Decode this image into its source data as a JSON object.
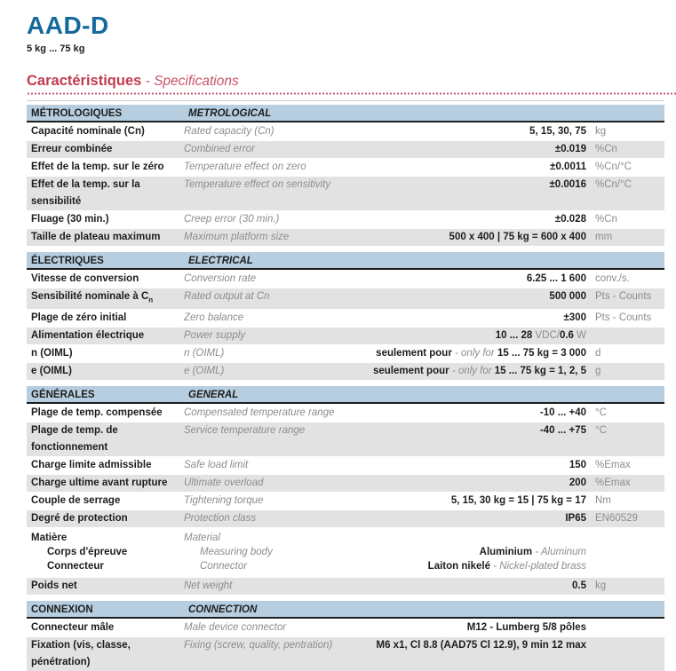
{
  "page": {
    "title": "AAD-D",
    "subtitle": "5 kg ... 75 kg",
    "heading_fr": "Caractéristiques",
    "heading_en": " - Specifications"
  },
  "colors": {
    "accent_blue": "#16699b",
    "accent_red": "#c23a4e",
    "section_band": "#b7cee1",
    "row_alt": "#e2e2e2",
    "text_dark": "#1d1d1b",
    "text_gray": "#8d8d8d"
  },
  "sections": [
    {
      "title_fr": "MÉTROLOGIQUES",
      "title_en": "METROLOGICAL",
      "rows": [
        {
          "fr": "Capacité nominale (Cn)",
          "en": "Rated capacity (Cn)",
          "value": [
            {
              "t": "5, 15, 30, 75",
              "s": "b"
            }
          ],
          "unit": "kg"
        },
        {
          "fr": "Erreur combinée",
          "en": "Combined error",
          "value": [
            {
              "t": "±0.019",
              "s": "b"
            }
          ],
          "unit": "%Cn"
        },
        {
          "fr": "Effet de la temp. sur le zéro",
          "en": "Temperature effect on zero",
          "value": [
            {
              "t": "±0.0011",
              "s": "b"
            }
          ],
          "unit": "%Cn/°C"
        },
        {
          "fr": "Effet de la temp. sur la sensibilité",
          "en": "Temperature effect on sensitivity",
          "value": [
            {
              "t": "±0.0016",
              "s": "b"
            }
          ],
          "unit": "%Cn/°C"
        },
        {
          "fr": "Fluage (30 min.)",
          "en": "Creep error (30 min.)",
          "value": [
            {
              "t": "±0.028",
              "s": "b"
            }
          ],
          "unit": "%Cn"
        },
        {
          "fr": "Taille de plateau maximum",
          "en": "Maximum platform size",
          "value": [
            {
              "t": "500 x 400 | 75 kg = 600 x 400",
              "s": "b"
            }
          ],
          "unit": "mm"
        }
      ]
    },
    {
      "title_fr": "ÉLECTRIQUES",
      "title_en": "ELECTRICAL",
      "rows": [
        {
          "fr": "Vitesse de conversion",
          "en": "Conversion rate",
          "value": [
            {
              "t": "6.25 ... 1 600",
              "s": "b"
            }
          ],
          "unit": "conv./s."
        },
        {
          "fr": "Sensibilité nominale à C",
          "fr_sub": "n",
          "en": "Rated output at Cn",
          "value": [
            {
              "t": "500 000",
              "s": "b"
            }
          ],
          "unit": "Pts - Counts"
        },
        {
          "fr": "Plage de zéro initial",
          "en": "Zero balance",
          "value": [
            {
              "t": "±300",
              "s": "b"
            }
          ],
          "unit": "Pts - Counts"
        },
        {
          "fr": "Alimentation électrique",
          "en": "Power supply",
          "value": [
            {
              "t": "10 ... 28 ",
              "s": "b"
            },
            {
              "t": "VDC/",
              "s": "g"
            },
            {
              "t": "0.6 ",
              "s": "b"
            },
            {
              "t": "W",
              "s": "g"
            }
          ],
          "unit": ""
        },
        {
          "fr": "n (OIML)",
          "en": "n (OIML)",
          "value": [
            {
              "t": "seulement pour ",
              "s": "b"
            },
            {
              "t": "- only for ",
              "s": "i"
            },
            {
              "t": "15 ... 75 kg = 3 000",
              "s": "b"
            }
          ],
          "unit": "d"
        },
        {
          "fr": "e (OIML)",
          "en": "e (OIML)",
          "value": [
            {
              "t": "seulement pour ",
              "s": "b"
            },
            {
              "t": "- only for ",
              "s": "i"
            },
            {
              "t": "15 ... 75 kg = 1, 2, 5",
              "s": "b"
            }
          ],
          "unit": "g"
        }
      ]
    },
    {
      "title_fr": "GÉNÉRALES",
      "title_en": "GENERAL",
      "rows": [
        {
          "fr": "Plage de temp. compensée",
          "en": "Compensated temperature range",
          "value": [
            {
              "t": "-10 ... +40",
              "s": "b"
            }
          ],
          "unit": "°C"
        },
        {
          "fr": "Plage de temp. de fonctionnement",
          "en": "Service temperature range",
          "value": [
            {
              "t": "-40 ... +75",
              "s": "b"
            }
          ],
          "unit": "°C"
        },
        {
          "fr": "Charge limite admissible",
          "en": "Safe load limit",
          "value": [
            {
              "t": "150",
              "s": "b"
            }
          ],
          "unit": "%Emax"
        },
        {
          "fr": "Charge ultime avant rupture",
          "en": "Ultimate overload",
          "value": [
            {
              "t": "200",
              "s": "b"
            }
          ],
          "unit": "%Emax"
        },
        {
          "fr": "Couple de serrage",
          "en": "Tightening torque",
          "value": [
            {
              "t": "5, 15, 30 kg = 15 | 75 kg = 17",
              "s": "b"
            }
          ],
          "unit": "Nm"
        },
        {
          "fr": "Degré de protection",
          "en": "Protection class",
          "value": [
            {
              "t": "IP65",
              "s": "b"
            }
          ],
          "unit": "EN60529"
        },
        {
          "material": true,
          "fr": "Matière",
          "en": "Material",
          "sub_rows": [
            {
              "fr": "Corps d'épreuve",
              "en": "Measuring body",
              "value": [
                {
                  "t": "Aluminium ",
                  "s": "b"
                },
                {
                  "t": "- Aluminum",
                  "s": "i"
                }
              ]
            },
            {
              "fr": "Connecteur",
              "en": "Connector",
              "value": [
                {
                  "t": "Laiton nikelé ",
                  "s": "b"
                },
                {
                  "t": "- Nickel-plated brass",
                  "s": "i"
                }
              ]
            }
          ]
        },
        {
          "fr": "Poids net",
          "en": "Net weight",
          "value": [
            {
              "t": "0.5",
              "s": "b"
            }
          ],
          "unit": "kg"
        }
      ]
    },
    {
      "title_fr": "CONNEXION",
      "title_en": "CONNECTION",
      "rows": [
        {
          "fr": "Connecteur mâle",
          "en": "Male device connector",
          "value": [
            {
              "t": "M12 - Lumberg 5/8 pôles",
              "s": "b"
            }
          ],
          "unit": ""
        },
        {
          "fr": "Fixation (vis, classe, pénétration)",
          "en": "Fixing (screw, quality, pentration)",
          "value": [
            {
              "t": "M6 x1, Cl 8.8 (AAD75 Cl 12.9), 9 min 12 max",
              "s": "b"
            }
          ],
          "unit": ""
        }
      ]
    }
  ]
}
